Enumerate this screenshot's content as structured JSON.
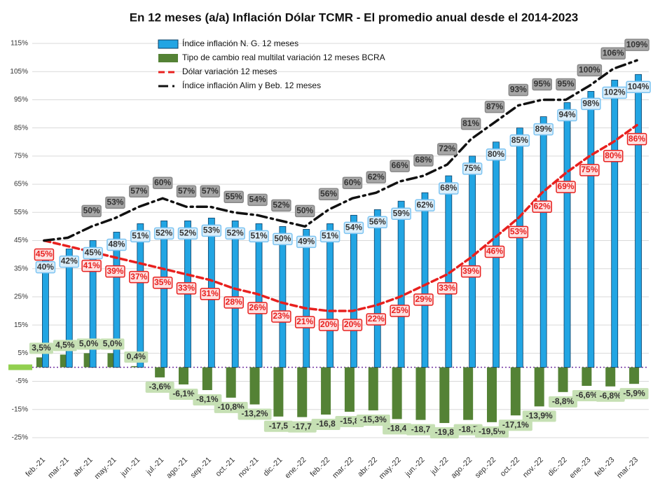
{
  "chart_data": {
    "type": "bar",
    "title": "En 12 meses  (a/a) Inflación Dólar TCMR -  El promedio anual desde el 2014-2023",
    "categories": [
      "feb.-21",
      "mar.-21",
      "abr.-21",
      "may.-21",
      "jun.-21",
      "jul.-21",
      "ago.-21",
      "sep.-21",
      "oct.-21",
      "nov.-21",
      "dic.-21",
      "ene.-22",
      "feb.-22",
      "mar.-22",
      "abr.-22",
      "may.-22",
      "jun.-22",
      "jul.-22",
      "ago.-22",
      "sep.-22",
      "oct.-22",
      "nov.-22",
      "dic.-22",
      "ene.-23",
      "feb.-23",
      "mar.-23"
    ],
    "ylim": [
      -27,
      118
    ],
    "yticks": [
      {
        "value": -25,
        "label": "-25%"
      },
      {
        "value": -15,
        "label": "-15%"
      },
      {
        "value": -5,
        "label": "-5%"
      },
      {
        "value": 5,
        "label": "5%"
      },
      {
        "value": 15,
        "label": "15%"
      },
      {
        "value": 25,
        "label": "25%"
      },
      {
        "value": 35,
        "label": "35%"
      },
      {
        "value": 45,
        "label": "45%"
      },
      {
        "value": 55,
        "label": "55%"
      },
      {
        "value": 65,
        "label": "65%"
      },
      {
        "value": 75,
        "label": "75%"
      },
      {
        "value": 85,
        "label": "85%"
      },
      {
        "value": 95,
        "label": "95%"
      },
      {
        "value": 105,
        "label": "105%"
      },
      {
        "value": 115,
        "label": "115%"
      }
    ],
    "grid": true,
    "legend": "upper left",
    "series": [
      {
        "name": "Índice inflación N. G. 12 meses",
        "type": "bar",
        "color": "#22a5e3",
        "values": [
          40,
          42,
          45,
          48,
          51,
          52,
          52,
          53,
          52,
          51,
          50,
          49,
          51,
          54,
          56,
          59,
          62,
          68,
          75,
          80,
          85,
          89,
          94,
          98,
          102,
          104
        ],
        "value_labels": [
          "40%",
          "42%",
          "45%",
          "48%",
          "51%",
          "52%",
          "52%",
          "53%",
          "52%",
          "51%",
          "50%",
          "49%",
          "51%",
          "54%",
          "56%",
          "59%",
          "62%",
          "68%",
          "75%",
          "80%",
          "85%",
          "89%",
          "94%",
          "98%",
          "102%",
          "104%"
        ]
      },
      {
        "name": "Tipo de cambio real multilat variación 12 meses BCRA",
        "type": "bar",
        "color": "#548235",
        "values": [
          3.5,
          4.5,
          5.0,
          5.0,
          0.4,
          -3.6,
          -6.1,
          -8.1,
          -10.8,
          -13.2,
          -17.5,
          -17.7,
          -16.8,
          -15.8,
          -15.3,
          -18.4,
          -18.7,
          -19.8,
          -18.7,
          -19.5,
          -17.1,
          -13.9,
          -8.8,
          -6.6,
          -6.8,
          -5.9
        ],
        "value_labels": [
          "3,5%",
          "4,5%",
          "5,0%",
          "5,0%",
          "0,4%",
          "-3,6%",
          "-6,1%",
          "-8,1%",
          "-10,8%",
          "-13,2%",
          "-17,5",
          "-17,7",
          "-16,8",
          "-15,8",
          "-15,3%",
          "-18,4",
          "-18,7",
          "-19,8",
          "-18,7",
          "-19,5%",
          "-17,1%",
          "-13,9%",
          "-8,8%",
          "-6,6%",
          "-6,8%",
          "-5,9%"
        ]
      },
      {
        "name": "Dólar variación 12 meses",
        "type": "line",
        "color": "#e8201e",
        "dash": "9,5",
        "values": [
          45,
          43,
          41,
          39,
          37,
          35,
          33,
          31,
          28,
          26,
          23,
          21,
          20,
          20,
          22,
          25,
          29,
          33,
          39,
          46,
          53,
          62,
          69,
          75,
          80,
          86
        ],
        "value_labels": [
          "45%",
          null,
          "41%",
          "39%",
          "37%",
          "35%",
          "33%",
          "31%",
          "28%",
          "26%",
          "23%",
          "21%",
          "20%",
          "20%",
          "22%",
          "25%",
          "29%",
          "33%",
          "39%",
          "46%",
          "53%",
          "62%",
          "69%",
          "75%",
          "80%",
          "86%"
        ]
      },
      {
        "name": "Índice inflación Alim y  Beb. 12 meses",
        "type": "line",
        "color": "#111111",
        "dash": "14,6,3,6",
        "values": [
          45,
          46,
          50,
          53,
          57,
          60,
          57,
          57,
          55,
          54,
          52,
          50,
          56,
          60,
          62,
          66,
          68,
          72,
          81,
          87,
          93,
          95,
          95,
          100,
          106,
          109
        ],
        "value_labels": [
          null,
          null,
          "50%",
          "53%",
          "57%",
          "60%",
          "57%",
          "57%",
          "55%",
          "54%",
          "52%",
          "50%",
          "56%",
          "60%",
          "62%",
          "66%",
          "68%",
          "72%",
          "81%",
          "87%",
          "93%",
          "95%",
          "95%",
          "100%",
          "106%",
          "109%"
        ]
      }
    ]
  }
}
